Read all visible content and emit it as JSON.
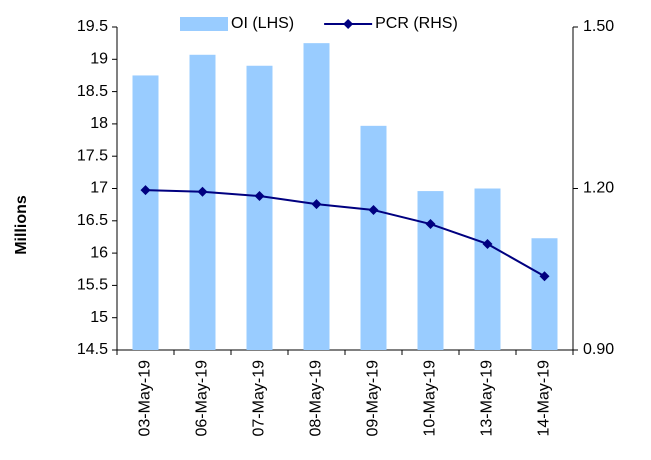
{
  "chart_data": {
    "type": "bar_line",
    "y_label": "Millions",
    "categories": [
      "03-May-19",
      "06-May-19",
      "07-May-19",
      "08-May-19",
      "09-May-19",
      "10-May-19",
      "13-May-19",
      "14-May-19"
    ],
    "series": [
      {
        "name": "OI (LHS)",
        "type": "bar",
        "color": "#99ccff",
        "values": [
          18.75,
          19.07,
          18.9,
          19.25,
          17.97,
          16.96,
          17.0,
          16.23
        ]
      },
      {
        "name": "PCR (RHS)",
        "type": "line",
        "axis": "y2",
        "color": "#000080",
        "values": [
          1.197,
          1.194,
          1.186,
          1.171,
          1.16,
          1.134,
          1.097,
          1.037
        ]
      }
    ],
    "ylim": [
      14.5,
      19.5
    ],
    "yticks": [
      14.5,
      15,
      15.5,
      16,
      16.5,
      17,
      17.5,
      18,
      18.5,
      19,
      19.5
    ],
    "y2lim": [
      0.9,
      1.5
    ],
    "y2ticks": [
      {
        "value": 0.9,
        "label": "0.90"
      },
      {
        "value": 1.2,
        "label": "1.20"
      },
      {
        "value": 1.5,
        "label": "1.50"
      }
    ],
    "legend": "top"
  }
}
